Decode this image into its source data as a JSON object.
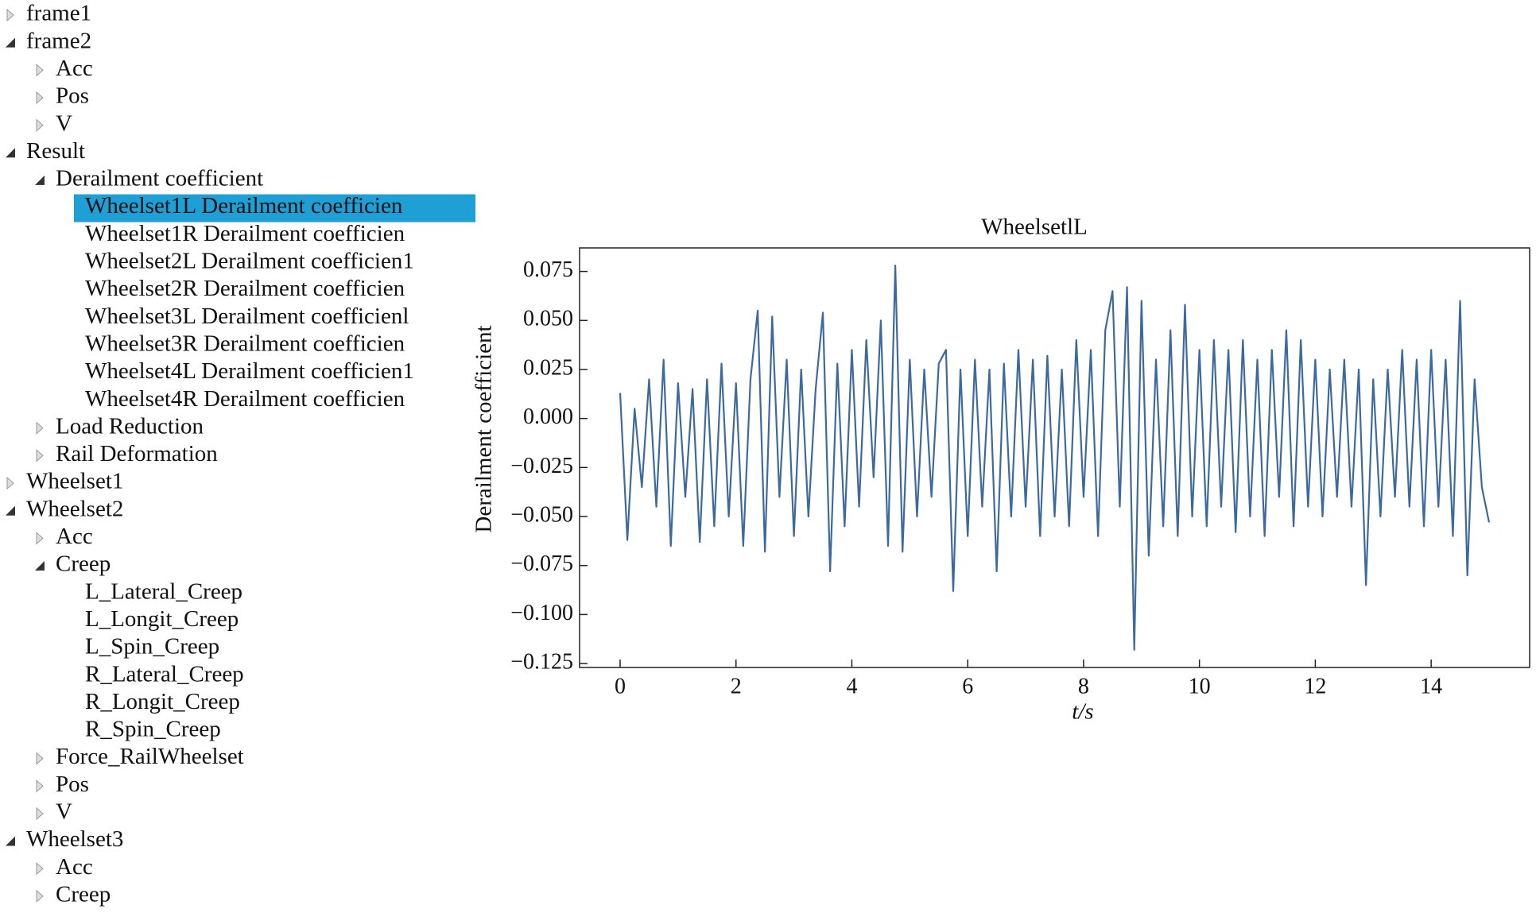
{
  "tree": [
    {
      "label": "frame1",
      "expanded": false
    },
    {
      "label": "frame2",
      "expanded": true,
      "children": [
        {
          "label": "Acc",
          "expanded": false
        },
        {
          "label": "Pos",
          "expanded": false
        },
        {
          "label": "V",
          "expanded": false
        }
      ]
    },
    {
      "label": "Result",
      "expanded": true,
      "children": [
        {
          "label": "Derailment coefficient",
          "expanded": true,
          "children": [
            {
              "label": "Wheelset1L Derailment coefficien",
              "selected": true
            },
            {
              "label": "Wheelset1R Derailment coefficien"
            },
            {
              "label": "Wheelset2L Derailment coefficien1"
            },
            {
              "label": "Wheelset2R Derailment coefficien"
            },
            {
              "label": "Wheelset3L Derailment coefficienl"
            },
            {
              "label": "Wheelset3R Derailment coefficien"
            },
            {
              "label": "Wheelset4L Derailment coefficien1"
            },
            {
              "label": "Wheelset4R Derailment coefficien"
            }
          ]
        },
        {
          "label": "Load Reduction",
          "expanded": false
        },
        {
          "label": "Rail Deformation",
          "expanded": false
        }
      ]
    },
    {
      "label": "Wheelset1",
      "expanded": false
    },
    {
      "label": "Wheelset2",
      "expanded": true,
      "children": [
        {
          "label": "Acc",
          "expanded": false
        },
        {
          "label": "Creep",
          "expanded": true,
          "children": [
            {
              "label": "L_Lateral_Creep"
            },
            {
              "label": "L_Longit_Creep"
            },
            {
              "label": "L_Spin_Creep"
            },
            {
              "label": "R_Lateral_Creep"
            },
            {
              "label": "R_Longit_Creep"
            },
            {
              "label": "R_Spin_Creep"
            }
          ]
        },
        {
          "label": "Force_RailWheelset",
          "expanded": false
        },
        {
          "label": "Pos",
          "expanded": false
        },
        {
          "label": "V",
          "expanded": false
        }
      ]
    },
    {
      "label": "Wheelset3",
      "expanded": true,
      "children": [
        {
          "label": "Acc",
          "expanded": false
        },
        {
          "label": "Creep",
          "expanded": false
        }
      ]
    }
  ],
  "chart_data": {
    "type": "line",
    "title": "WheelsetlL",
    "x_label": "t/s",
    "y_label": "Derailment coefficient",
    "xlim": [
      -0.7,
      15.7
    ],
    "ylim": [
      -0.127,
      0.087
    ],
    "xticks": [
      0,
      2,
      4,
      6,
      8,
      10,
      12,
      14
    ],
    "yticks": [
      0.075,
      {
        "value": 0.05,
        "label": "0.050"
      },
      0.025,
      {
        "value": 0,
        "label": "0.000"
      },
      {
        "value": -0.025,
        "label": "−0.025"
      },
      {
        "value": -0.05,
        "label": "−0.050"
      },
      {
        "value": -0.075,
        "label": "−0.075"
      },
      {
        "value": -0.1,
        "label": "−0.100"
      },
      {
        "value": -0.125,
        "label": "−0.125"
      }
    ],
    "grid": false,
    "x": [
      0,
      0.125,
      0.25,
      0.375,
      0.5,
      0.625,
      0.75,
      0.875,
      1,
      1.125,
      1.25,
      1.375,
      1.5,
      1.625,
      1.75,
      1.875,
      2,
      2.125,
      2.25,
      2.375,
      2.5,
      2.625,
      2.75,
      2.875,
      3,
      3.125,
      3.25,
      3.375,
      3.5,
      3.625,
      3.75,
      3.875,
      4,
      4.125,
      4.25,
      4.375,
      4.5,
      4.625,
      4.75,
      4.875,
      5,
      5.125,
      5.25,
      5.375,
      5.5,
      5.625,
      5.75,
      5.875,
      6,
      6.125,
      6.25,
      6.375,
      6.5,
      6.625,
      6.75,
      6.875,
      7,
      7.125,
      7.25,
      7.375,
      7.5,
      7.625,
      7.75,
      7.875,
      8,
      8.125,
      8.25,
      8.375,
      8.5,
      8.625,
      8.75,
      8.875,
      9,
      9.125,
      9.25,
      9.375,
      9.5,
      9.625,
      9.75,
      9.875,
      10,
      10.125,
      10.25,
      10.375,
      10.5,
      10.625,
      10.75,
      10.875,
      11,
      11.125,
      11.25,
      11.375,
      11.5,
      11.625,
      11.75,
      11.875,
      12,
      12.125,
      12.25,
      12.375,
      12.5,
      12.625,
      12.75,
      12.875,
      13,
      13.125,
      13.25,
      13.375,
      13.5,
      13.625,
      13.75,
      13.875,
      14,
      14.125,
      14.25,
      14.375,
      14.5,
      14.625,
      14.75,
      14.875,
      15
    ],
    "series": [
      {
        "color": "#3d6a9e",
        "values": [
          0.013,
          -0.062,
          0.005,
          -0.035,
          0.02,
          -0.045,
          0.03,
          -0.065,
          0.018,
          -0.04,
          0.015,
          -0.063,
          0.02,
          -0.055,
          0.028,
          -0.05,
          0.018,
          -0.065,
          0.02,
          0.055,
          -0.068,
          0.052,
          -0.04,
          0.03,
          -0.06,
          0.025,
          -0.05,
          0.015,
          0.054,
          -0.078,
          0.028,
          -0.055,
          0.035,
          -0.045,
          0.04,
          -0.03,
          0.05,
          -0.065,
          0.078,
          -0.068,
          0.03,
          -0.05,
          0.025,
          -0.04,
          0.028,
          0.035,
          -0.088,
          0.025,
          -0.06,
          0.03,
          -0.045,
          0.025,
          -0.078,
          0.028,
          -0.05,
          0.035,
          -0.045,
          0.03,
          -0.06,
          0.032,
          -0.05,
          0.025,
          -0.055,
          0.04,
          -0.04,
          0.035,
          -0.06,
          0.045,
          0.065,
          -0.045,
          0.067,
          -0.118,
          0.06,
          -0.07,
          0.03,
          -0.055,
          0.045,
          -0.06,
          0.058,
          -0.05,
          0.035,
          -0.055,
          0.04,
          -0.045,
          0.035,
          -0.058,
          0.04,
          -0.05,
          0.03,
          -0.06,
          0.035,
          -0.04,
          0.045,
          -0.055,
          0.04,
          -0.045,
          0.03,
          -0.05,
          0.025,
          -0.04,
          0.03,
          -0.045,
          0.025,
          -0.085,
          0.02,
          -0.05,
          0.025,
          -0.04,
          0.035,
          -0.045,
          0.03,
          -0.055,
          0.035,
          -0.045,
          0.03,
          -0.06,
          0.06,
          -0.08,
          0.02,
          -0.035,
          -0.053
        ]
      }
    ]
  }
}
